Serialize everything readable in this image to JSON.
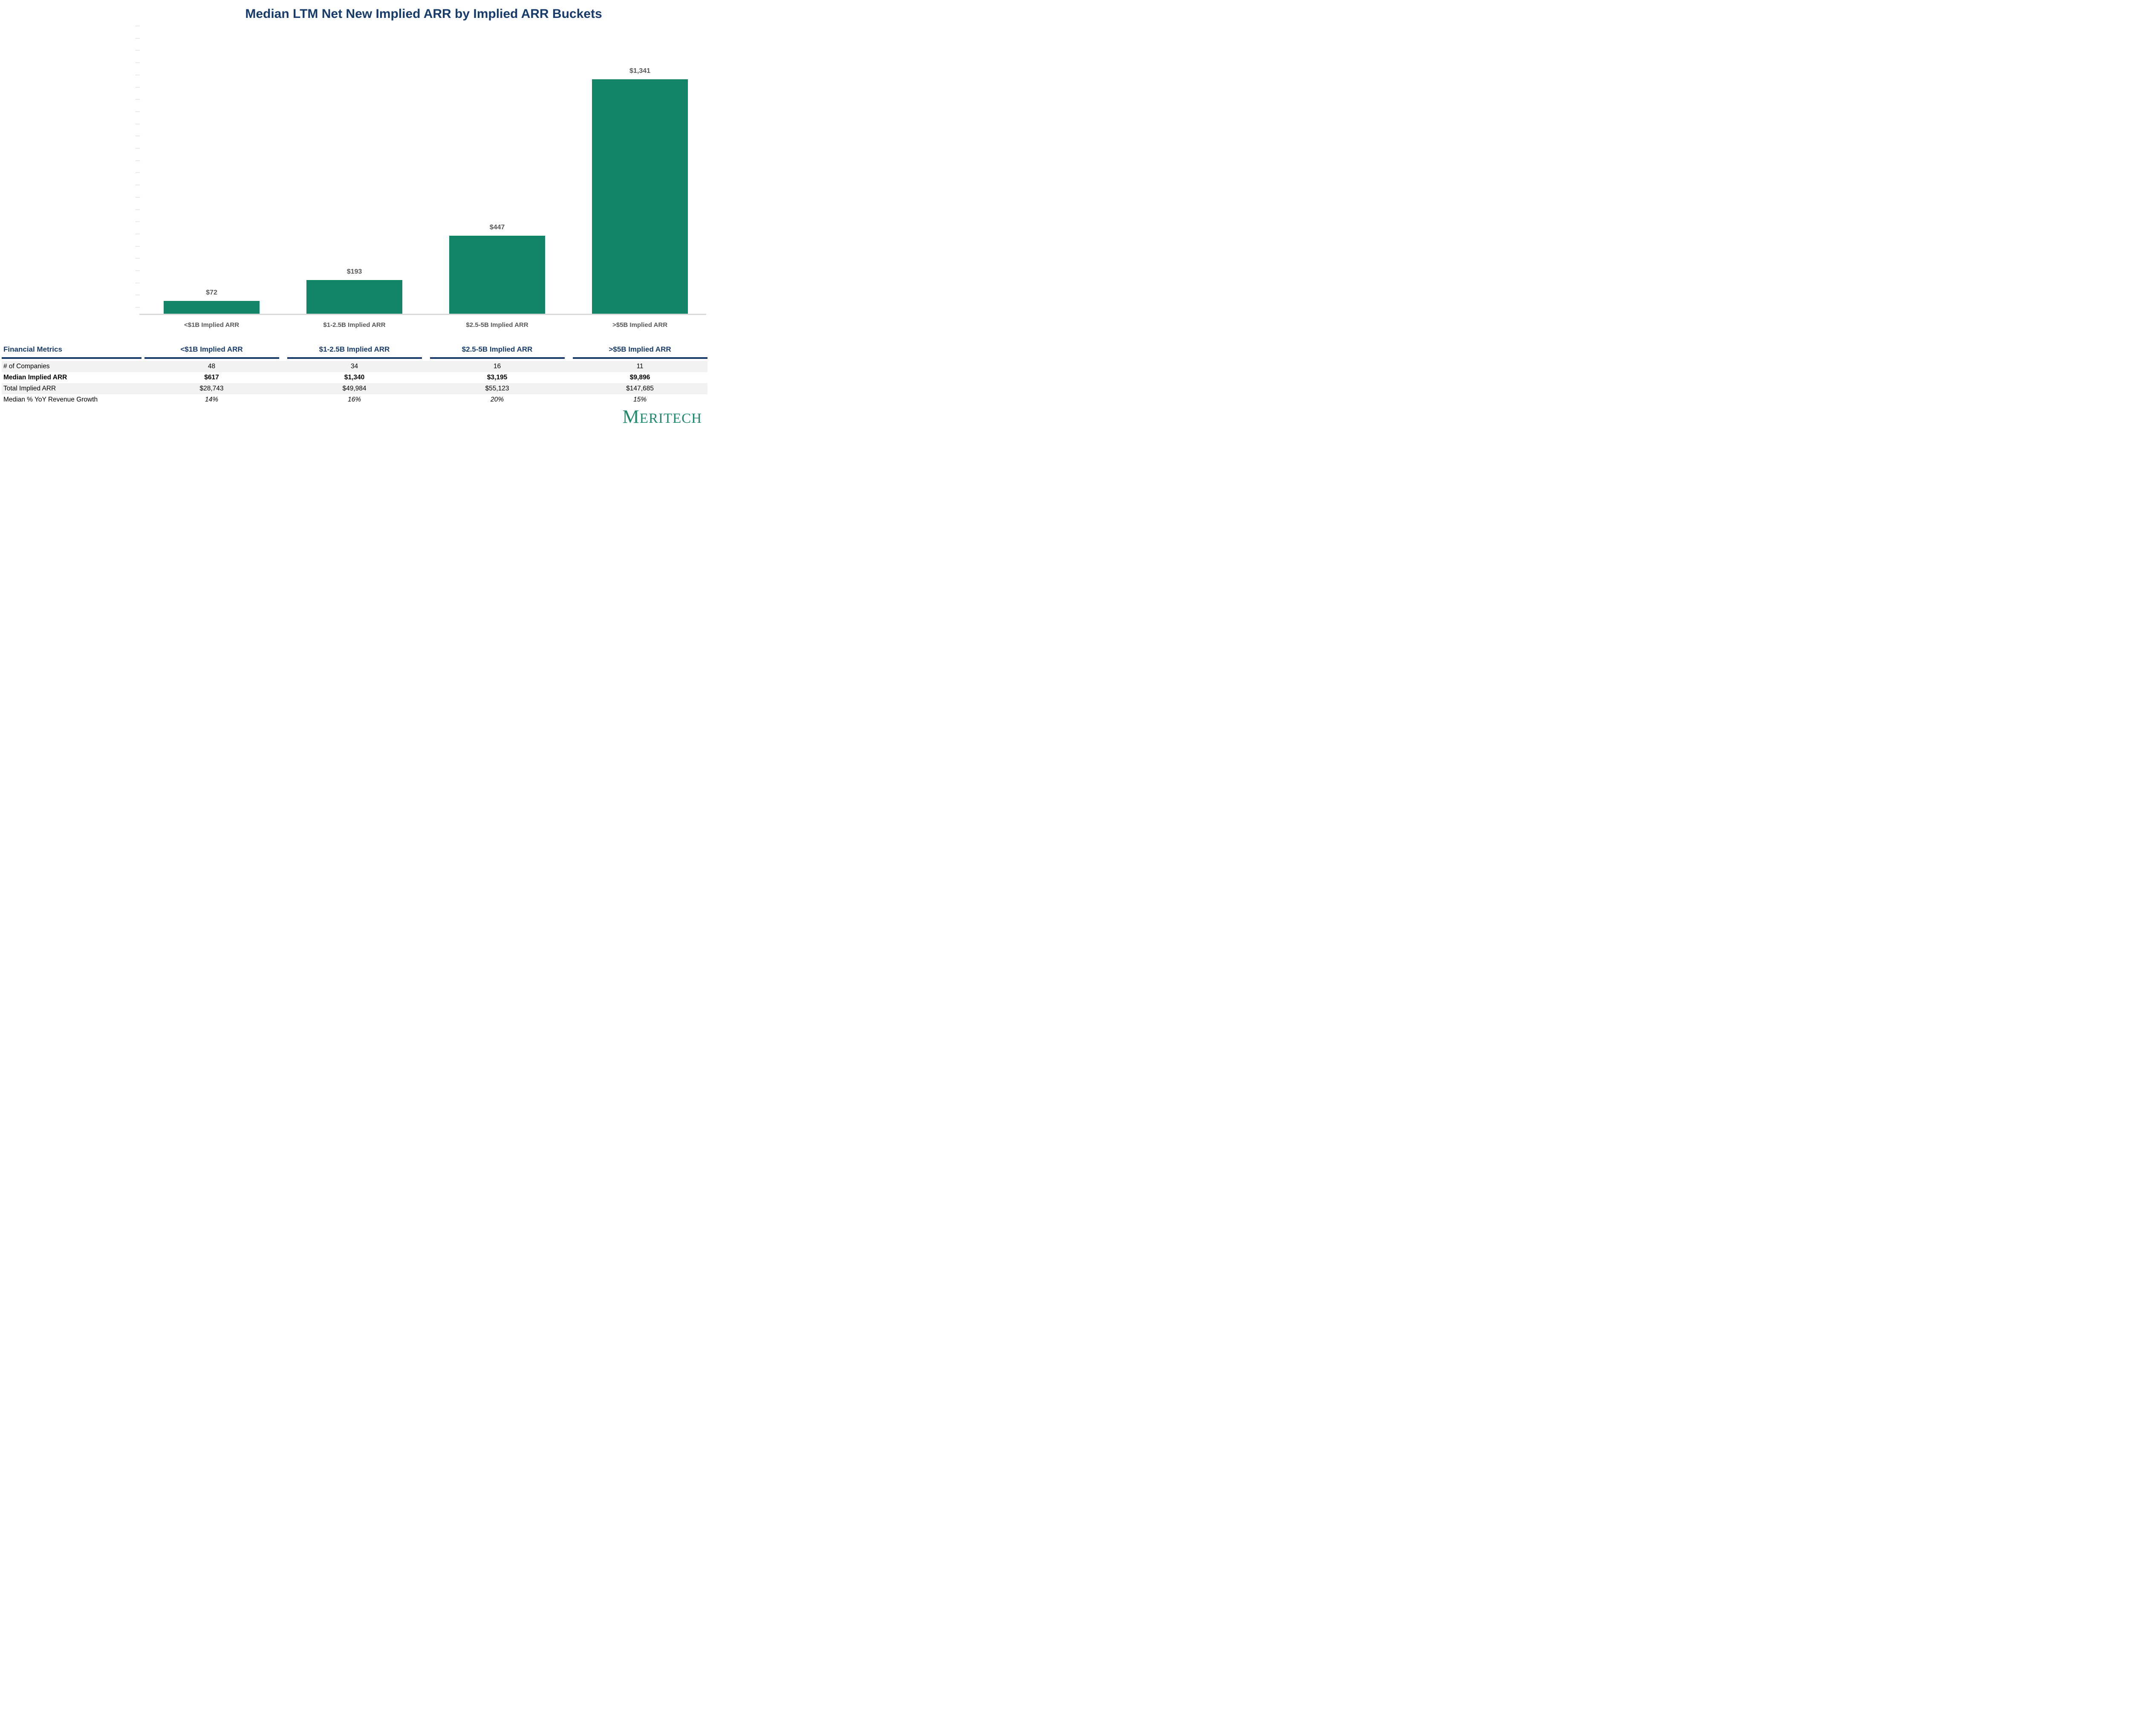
{
  "title": "Median LTM Net New Implied ARR by Implied ARR Buckets",
  "chart_data": {
    "type": "bar",
    "title": "Median LTM Net New Implied ARR by Implied ARR Buckets",
    "categories": [
      "<$1B Implied ARR",
      "$1-2.5B Implied ARR",
      "$2.5-5B Implied ARR",
      ">$5B Implied ARR"
    ],
    "values": [
      72,
      193,
      447,
      1341
    ],
    "bar_labels": [
      "$72",
      "$193",
      "$447",
      "$1,341"
    ],
    "xlabel": "",
    "ylabel": "",
    "ylim": [
      0,
      1612
    ],
    "grid": false,
    "legend": "none",
    "bar_color": "#128569"
  },
  "table": {
    "header": {
      "metrics_label": "Financial Metrics",
      "columns": [
        "<$1B Implied ARR",
        "$1-2.5B Implied ARR",
        "$2.5-5B Implied ARR",
        ">$5B Implied ARR"
      ]
    },
    "rows": [
      {
        "label": "# of Companies",
        "values": [
          "48",
          "34",
          "16",
          "11"
        ],
        "emphasis": "none"
      },
      {
        "label": "Median Implied ARR",
        "values": [
          "$617",
          "$1,340",
          "$3,195",
          "$9,896"
        ],
        "emphasis": "bold"
      },
      {
        "label": "Total Implied ARR",
        "values": [
          "$28,743",
          "$49,984",
          "$55,123",
          "$147,685"
        ],
        "emphasis": "none"
      },
      {
        "label": "Median % YoY Revenue Growth",
        "values": [
          "14%",
          "16%",
          "20%",
          "15%"
        ],
        "emphasis": "italic-values"
      }
    ]
  },
  "logo": {
    "first_letter": "M",
    "rest": "ERITECH",
    "color": "#1D8A6B"
  },
  "colors": {
    "navy": "#173B6A",
    "bar_green": "#128569",
    "label_gray": "#595959",
    "row_stripe": "#F2F2F2",
    "axis_gray": "#D9D9D9"
  }
}
